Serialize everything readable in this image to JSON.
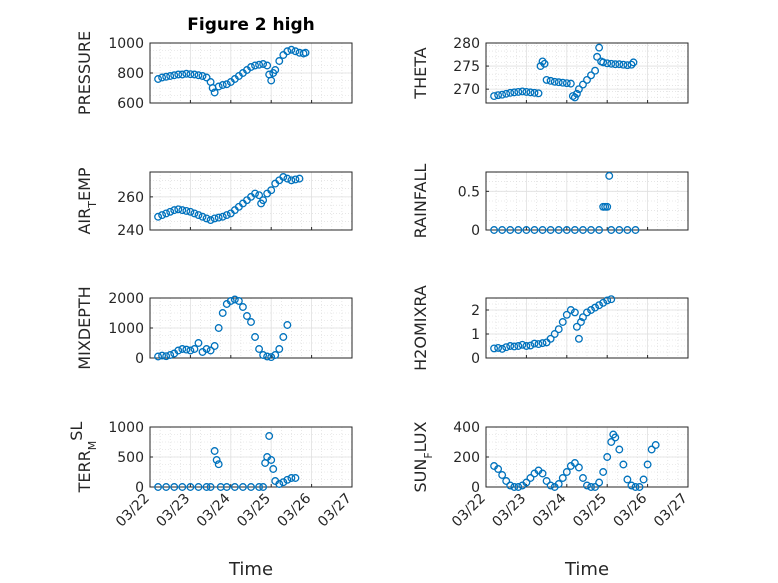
{
  "figure": {
    "title": "Figure 2 high",
    "marker_color": "#0072bd"
  },
  "chart_data": [
    {
      "type": "scatter",
      "title": "Figure 2 high",
      "ylabel": "PRESSURE",
      "xlabel": "",
      "xlim": [
        0,
        5
      ],
      "ylim": [
        600,
        1000
      ],
      "yticks": [
        600,
        800,
        1000
      ],
      "xticks": [
        "03/22",
        "03/23",
        "03/24",
        "03/25",
        "03/26",
        "03/27"
      ],
      "show_xticklabels": false,
      "points": [
        [
          0.2,
          760
        ],
        [
          0.3,
          770
        ],
        [
          0.4,
          775
        ],
        [
          0.5,
          780
        ],
        [
          0.6,
          785
        ],
        [
          0.7,
          790
        ],
        [
          0.8,
          790
        ],
        [
          0.9,
          795
        ],
        [
          1.0,
          792
        ],
        [
          1.1,
          790
        ],
        [
          1.2,
          785
        ],
        [
          1.3,
          780
        ],
        [
          1.4,
          770
        ],
        [
          1.5,
          740
        ],
        [
          1.55,
          700
        ],
        [
          1.6,
          670
        ],
        [
          1.7,
          710
        ],
        [
          1.8,
          720
        ],
        [
          1.9,
          725
        ],
        [
          2.0,
          740
        ],
        [
          2.1,
          760
        ],
        [
          2.2,
          780
        ],
        [
          2.3,
          800
        ],
        [
          2.4,
          820
        ],
        [
          2.5,
          840
        ],
        [
          2.6,
          850
        ],
        [
          2.7,
          855
        ],
        [
          2.8,
          860
        ],
        [
          2.9,
          850
        ],
        [
          2.95,
          790
        ],
        [
          3.0,
          750
        ],
        [
          3.05,
          800
        ],
        [
          3.1,
          820
        ],
        [
          3.2,
          880
        ],
        [
          3.3,
          920
        ],
        [
          3.4,
          945
        ],
        [
          3.5,
          955
        ],
        [
          3.6,
          945
        ],
        [
          3.7,
          935
        ],
        [
          3.8,
          930
        ],
        [
          3.85,
          935
        ]
      ]
    },
    {
      "type": "scatter",
      "title": "",
      "ylabel": "THETA",
      "xlabel": "",
      "xlim": [
        0,
        5
      ],
      "ylim": [
        267,
        280
      ],
      "yticks": [
        270,
        275,
        280
      ],
      "xticks": [
        "03/22",
        "03/23",
        "03/24",
        "03/25",
        "03/26",
        "03/27"
      ],
      "show_xticklabels": false,
      "points": [
        [
          0.2,
          268.5
        ],
        [
          0.3,
          268.7
        ],
        [
          0.4,
          268.8
        ],
        [
          0.5,
          269
        ],
        [
          0.6,
          269.2
        ],
        [
          0.7,
          269.3
        ],
        [
          0.8,
          269.4
        ],
        [
          0.9,
          269.5
        ],
        [
          1.0,
          269.4
        ],
        [
          1.1,
          269.3
        ],
        [
          1.2,
          269.2
        ],
        [
          1.3,
          269.1
        ],
        [
          1.35,
          275
        ],
        [
          1.4,
          276
        ],
        [
          1.45,
          275.5
        ],
        [
          1.5,
          272
        ],
        [
          1.6,
          271.8
        ],
        [
          1.7,
          271.6
        ],
        [
          1.8,
          271.5
        ],
        [
          1.9,
          271.4
        ],
        [
          2.0,
          271.3
        ],
        [
          2.1,
          271.2
        ],
        [
          2.15,
          268.5
        ],
        [
          2.2,
          268.2
        ],
        [
          2.25,
          269
        ],
        [
          2.3,
          270
        ],
        [
          2.4,
          271
        ],
        [
          2.5,
          272
        ],
        [
          2.6,
          273
        ],
        [
          2.7,
          274
        ],
        [
          2.75,
          277
        ],
        [
          2.8,
          279
        ],
        [
          2.85,
          276
        ],
        [
          2.9,
          275.8
        ],
        [
          3.0,
          275.6
        ],
        [
          3.1,
          275.5
        ],
        [
          3.2,
          275.4
        ],
        [
          3.3,
          275.4
        ],
        [
          3.4,
          275.3
        ],
        [
          3.5,
          275.2
        ],
        [
          3.6,
          275.3
        ],
        [
          3.65,
          275.8
        ]
      ]
    },
    {
      "type": "scatter",
      "title": "",
      "ylabel": "AIR_TEMP",
      "xlabel": "",
      "xlim": [
        0,
        5
      ],
      "ylim": [
        240,
        275
      ],
      "yticks": [
        240,
        260
      ],
      "xticks": [
        "03/22",
        "03/23",
        "03/24",
        "03/25",
        "03/26",
        "03/27"
      ],
      "show_xticklabels": false,
      "points": [
        [
          0.2,
          248
        ],
        [
          0.3,
          249
        ],
        [
          0.4,
          250
        ],
        [
          0.5,
          251
        ],
        [
          0.6,
          252
        ],
        [
          0.7,
          252.5
        ],
        [
          0.8,
          252
        ],
        [
          0.9,
          251.5
        ],
        [
          1.0,
          251
        ],
        [
          1.1,
          250
        ],
        [
          1.2,
          249
        ],
        [
          1.3,
          248
        ],
        [
          1.4,
          247
        ],
        [
          1.5,
          246
        ],
        [
          1.6,
          247
        ],
        [
          1.7,
          247.5
        ],
        [
          1.8,
          248
        ],
        [
          1.9,
          249
        ],
        [
          2.0,
          250
        ],
        [
          2.1,
          252
        ],
        [
          2.2,
          254
        ],
        [
          2.3,
          256
        ],
        [
          2.4,
          258
        ],
        [
          2.5,
          260
        ],
        [
          2.6,
          262
        ],
        [
          2.7,
          261
        ],
        [
          2.75,
          256
        ],
        [
          2.8,
          258
        ],
        [
          2.9,
          262
        ],
        [
          3.0,
          264
        ],
        [
          3.1,
          268
        ],
        [
          3.2,
          270
        ],
        [
          3.3,
          272
        ],
        [
          3.4,
          271
        ],
        [
          3.5,
          270
        ],
        [
          3.6,
          270.5
        ],
        [
          3.7,
          271
        ]
      ]
    },
    {
      "type": "scatter",
      "title": "",
      "ylabel": "RAINFALL",
      "xlabel": "",
      "xlim": [
        0,
        5
      ],
      "ylim": [
        0,
        0.75
      ],
      "yticks": [
        0,
        0.5
      ],
      "xticks": [
        "03/22",
        "03/23",
        "03/24",
        "03/25",
        "03/26",
        "03/27"
      ],
      "show_xticklabels": false,
      "points": [
        [
          0.2,
          0
        ],
        [
          0.4,
          0
        ],
        [
          0.6,
          0
        ],
        [
          0.8,
          0
        ],
        [
          1.0,
          0
        ],
        [
          1.2,
          0
        ],
        [
          1.4,
          0
        ],
        [
          1.6,
          0
        ],
        [
          1.8,
          0
        ],
        [
          2.0,
          0
        ],
        [
          2.2,
          0
        ],
        [
          2.4,
          0
        ],
        [
          2.6,
          0
        ],
        [
          2.8,
          0
        ],
        [
          2.9,
          0.3
        ],
        [
          2.95,
          0.3
        ],
        [
          3.0,
          0.3
        ],
        [
          3.05,
          0.7
        ],
        [
          3.1,
          0
        ],
        [
          3.3,
          0
        ],
        [
          3.5,
          0
        ],
        [
          3.7,
          0
        ]
      ]
    },
    {
      "type": "scatter",
      "title": "",
      "ylabel": "MIXDEPTH",
      "xlabel": "",
      "xlim": [
        0,
        5
      ],
      "ylim": [
        0,
        2000
      ],
      "yticks": [
        0,
        1000,
        2000
      ],
      "xticks": [
        "03/22",
        "03/23",
        "03/24",
        "03/25",
        "03/26",
        "03/27"
      ],
      "show_xticklabels": false,
      "points": [
        [
          0.2,
          50
        ],
        [
          0.3,
          80
        ],
        [
          0.4,
          60
        ],
        [
          0.5,
          100
        ],
        [
          0.6,
          150
        ],
        [
          0.7,
          250
        ],
        [
          0.8,
          300
        ],
        [
          0.9,
          280
        ],
        [
          1.0,
          250
        ],
        [
          1.1,
          300
        ],
        [
          1.2,
          500
        ],
        [
          1.3,
          200
        ],
        [
          1.4,
          300
        ],
        [
          1.5,
          250
        ],
        [
          1.6,
          400
        ],
        [
          1.7,
          1000
        ],
        [
          1.8,
          1500
        ],
        [
          1.9,
          1800
        ],
        [
          2.0,
          1900
        ],
        [
          2.1,
          1950
        ],
        [
          2.2,
          1900
        ],
        [
          2.3,
          1700
        ],
        [
          2.4,
          1400
        ],
        [
          2.5,
          1200
        ],
        [
          2.6,
          700
        ],
        [
          2.7,
          300
        ],
        [
          2.8,
          100
        ],
        [
          2.9,
          50
        ],
        [
          3.0,
          30
        ],
        [
          3.1,
          100
        ],
        [
          3.2,
          300
        ],
        [
          3.3,
          700
        ],
        [
          3.4,
          1100
        ]
      ]
    },
    {
      "type": "scatter",
      "title": "",
      "ylabel": "H2OMIXRA",
      "xlabel": "",
      "xlim": [
        0,
        5
      ],
      "ylim": [
        0,
        2.5
      ],
      "yticks": [
        0,
        1,
        2
      ],
      "xticks": [
        "03/22",
        "03/23",
        "03/24",
        "03/25",
        "03/26",
        "03/27"
      ],
      "show_xticklabels": false,
      "points": [
        [
          0.2,
          0.4
        ],
        [
          0.3,
          0.42
        ],
        [
          0.4,
          0.38
        ],
        [
          0.5,
          0.45
        ],
        [
          0.6,
          0.5
        ],
        [
          0.7,
          0.48
        ],
        [
          0.8,
          0.5
        ],
        [
          0.9,
          0.55
        ],
        [
          1.0,
          0.5
        ],
        [
          1.1,
          0.52
        ],
        [
          1.2,
          0.6
        ],
        [
          1.3,
          0.58
        ],
        [
          1.4,
          0.62
        ],
        [
          1.5,
          0.65
        ],
        [
          1.6,
          0.8
        ],
        [
          1.7,
          1.0
        ],
        [
          1.8,
          1.2
        ],
        [
          1.9,
          1.5
        ],
        [
          2.0,
          1.8
        ],
        [
          2.1,
          2.0
        ],
        [
          2.2,
          1.9
        ],
        [
          2.25,
          1.3
        ],
        [
          2.3,
          0.8
        ],
        [
          2.35,
          1.5
        ],
        [
          2.4,
          1.7
        ],
        [
          2.5,
          1.9
        ],
        [
          2.6,
          2.0
        ],
        [
          2.7,
          2.1
        ],
        [
          2.8,
          2.2
        ],
        [
          2.9,
          2.3
        ],
        [
          3.0,
          2.4
        ],
        [
          3.1,
          2.45
        ]
      ]
    },
    {
      "type": "scatter",
      "title": "",
      "ylabel": "TERR_MSL",
      "xlabel": "Time",
      "xlim": [
        0,
        5
      ],
      "ylim": [
        0,
        1000
      ],
      "yticks": [
        0,
        500,
        1000
      ],
      "xticks": [
        "03/22",
        "03/23",
        "03/24",
        "03/25",
        "03/26",
        "03/27"
      ],
      "show_xticklabels": true,
      "points": [
        [
          0.2,
          0
        ],
        [
          0.4,
          0
        ],
        [
          0.6,
          0
        ],
        [
          0.8,
          0
        ],
        [
          1.0,
          0
        ],
        [
          1.2,
          0
        ],
        [
          1.4,
          0
        ],
        [
          1.5,
          0
        ],
        [
          1.6,
          600
        ],
        [
          1.65,
          450
        ],
        [
          1.7,
          380
        ],
        [
          1.75,
          0
        ],
        [
          1.9,
          0
        ],
        [
          2.1,
          0
        ],
        [
          2.3,
          0
        ],
        [
          2.5,
          0
        ],
        [
          2.7,
          0
        ],
        [
          2.8,
          0
        ],
        [
          2.85,
          400
        ],
        [
          2.9,
          500
        ],
        [
          2.95,
          850
        ],
        [
          3.0,
          450
        ],
        [
          3.05,
          300
        ],
        [
          3.1,
          100
        ],
        [
          3.2,
          50
        ],
        [
          3.3,
          80
        ],
        [
          3.4,
          120
        ],
        [
          3.5,
          150
        ],
        [
          3.6,
          150
        ]
      ]
    },
    {
      "type": "scatter",
      "title": "",
      "ylabel": "SUN_FLUX",
      "xlabel": "Time",
      "xlim": [
        0,
        5
      ],
      "ylim": [
        0,
        400
      ],
      "yticks": [
        0,
        200,
        400
      ],
      "xticks": [
        "03/22",
        "03/23",
        "03/24",
        "03/25",
        "03/26",
        "03/27"
      ],
      "show_xticklabels": true,
      "points": [
        [
          0.2,
          140
        ],
        [
          0.3,
          120
        ],
        [
          0.4,
          80
        ],
        [
          0.5,
          40
        ],
        [
          0.6,
          10
        ],
        [
          0.7,
          0
        ],
        [
          0.8,
          0
        ],
        [
          0.9,
          10
        ],
        [
          1.0,
          30
        ],
        [
          1.1,
          60
        ],
        [
          1.2,
          90
        ],
        [
          1.3,
          110
        ],
        [
          1.4,
          90
        ],
        [
          1.5,
          40
        ],
        [
          1.6,
          10
        ],
        [
          1.7,
          0
        ],
        [
          1.8,
          20
        ],
        [
          1.9,
          60
        ],
        [
          2.0,
          100
        ],
        [
          2.1,
          140
        ],
        [
          2.2,
          160
        ],
        [
          2.3,
          130
        ],
        [
          2.4,
          60
        ],
        [
          2.5,
          10
        ],
        [
          2.6,
          0
        ],
        [
          2.7,
          0
        ],
        [
          2.8,
          30
        ],
        [
          2.9,
          100
        ],
        [
          3.0,
          200
        ],
        [
          3.1,
          300
        ],
        [
          3.15,
          350
        ],
        [
          3.2,
          330
        ],
        [
          3.3,
          250
        ],
        [
          3.4,
          150
        ],
        [
          3.5,
          50
        ],
        [
          3.6,
          10
        ],
        [
          3.7,
          0
        ],
        [
          3.8,
          0
        ],
        [
          3.9,
          50
        ],
        [
          4.0,
          150
        ],
        [
          4.1,
          250
        ],
        [
          4.2,
          280
        ]
      ]
    }
  ],
  "ylabel_parts": [
    {
      "main": "PRESSURE",
      "sub": "",
      "rest": "",
      "sup": ""
    },
    {
      "main": "THETA",
      "sub": "",
      "rest": "",
      "sup": ""
    },
    {
      "main": "AIR",
      "sub": "T",
      "rest": "EMP",
      "sup": ""
    },
    {
      "main": "RAINFALL",
      "sub": "",
      "rest": "",
      "sup": ""
    },
    {
      "main": "MIXDEPTH",
      "sub": "",
      "rest": "",
      "sup": ""
    },
    {
      "main": "H2OMIXRA",
      "sub": "",
      "rest": "",
      "sup": ""
    },
    {
      "main": "TERR",
      "sub": "M",
      "rest": "",
      "sup": "SL"
    },
    {
      "main": "SUN",
      "sub": "F",
      "rest": "LUX",
      "sup": ""
    }
  ]
}
